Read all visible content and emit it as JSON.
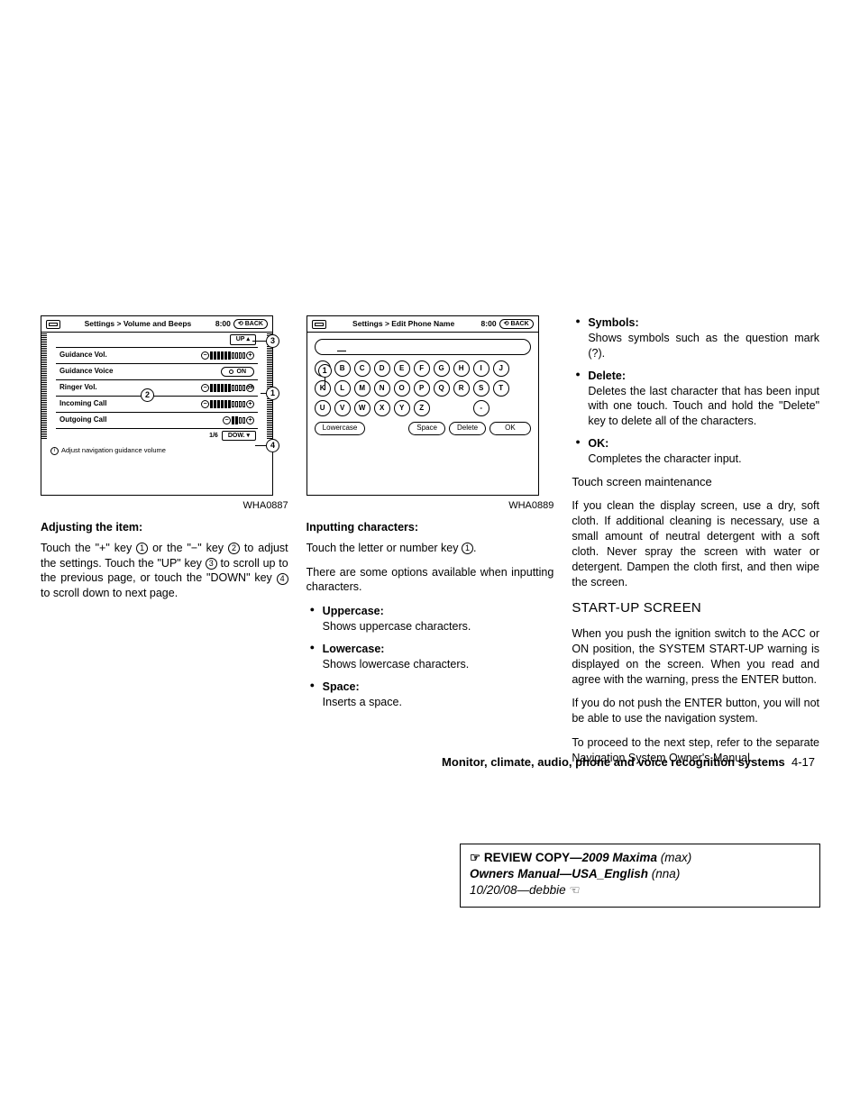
{
  "shot1": {
    "breadcrumb": "Settings > Volume and Beeps",
    "time": "8:00",
    "back": "BACK",
    "up": "UP",
    "down": "DOW.",
    "page": "1/6",
    "rows": {
      "guidance_vol": "Guidance Vol.",
      "guidance_voice": "Guidance Voice",
      "on": "ON",
      "ringer_vol": "Ringer Vol.",
      "incoming": "Incoming Call",
      "outgoing": "Outgoing Call"
    },
    "hint": "Adjust navigation guidance volume",
    "code": "WHA0887"
  },
  "shot2": {
    "breadcrumb": "Settings > Edit Phone Name",
    "time": "8:00",
    "back": "BACK",
    "keys_r1": [
      "A",
      "B",
      "C",
      "D",
      "E",
      "F",
      "G",
      "H",
      "I",
      "J"
    ],
    "keys_r2": [
      "K",
      "L",
      "M",
      "N",
      "O",
      "P",
      "Q",
      "R",
      "S",
      "T"
    ],
    "keys_r3": [
      "U",
      "V",
      "W",
      "X",
      "Y",
      "Z"
    ],
    "dash": "-",
    "lowercase": "Lowercase",
    "space": "Space",
    "delete": "Delete",
    "ok": "OK",
    "code": "WHA0889"
  },
  "col1": {
    "h": "Adjusting the item:",
    "p_a": "Touch the \"+\" key ",
    "p_b": " or the \"−\" key ",
    "p_c": " to adjust the settings. Touch the \"UP\" key ",
    "p_d": " to scroll up to the previous page, or touch the \"DOWN\" key ",
    "p_e": " to scroll down to next page."
  },
  "col2": {
    "h": "Inputting characters:",
    "p1_a": "Touch the letter or number key ",
    "p1_b": ".",
    "p2": "There are some options available when inputting characters.",
    "uppercase_t": "Uppercase:",
    "uppercase_d": "Shows uppercase characters.",
    "lowercase_t": "Lowercase:",
    "lowercase_d": "Shows lowercase characters.",
    "space_t": "Space:",
    "space_d": "Inserts a space."
  },
  "col3": {
    "symbols_t": "Symbols:",
    "symbols_d": "Shows symbols such as the question mark (?).",
    "delete_t": "Delete:",
    "delete_d": "Deletes the last character that has been input with one touch. Touch and hold the \"Delete\" key to delete all of the characters.",
    "ok_t": "OK:",
    "ok_d": "Completes the character input.",
    "maint_h": "Touch screen maintenance",
    "maint_p": "If you clean the display screen, use a dry, soft cloth. If additional cleaning is necessary, use a small amount of neutral detergent with a soft cloth. Never spray the screen with water or detergent. Dampen the cloth first, and then wipe the screen.",
    "startup_h": "START-UP SCREEN",
    "startup_p1": "When you push the ignition switch to the ACC or ON position, the SYSTEM START-UP warning is displayed on the screen. When you read and agree with the warning, press the ENTER button.",
    "startup_p2": "If you do not push the ENTER button, you will not be able to use the navigation system.",
    "startup_p3": "To proceed to the next step, refer to the separate Navigation System Owner's Manual."
  },
  "footer": {
    "section": "Monitor, climate, audio, phone and voice recognition systems",
    "page": "4-17"
  },
  "stamp": {
    "l1a": "REVIEW COPY—",
    "l1b": "2009 Maxima",
    "l1c": " (max)",
    "l2a": "Owners Manual—USA_English",
    "l2b": " (nna)",
    "l3": "10/20/08—debbie"
  }
}
